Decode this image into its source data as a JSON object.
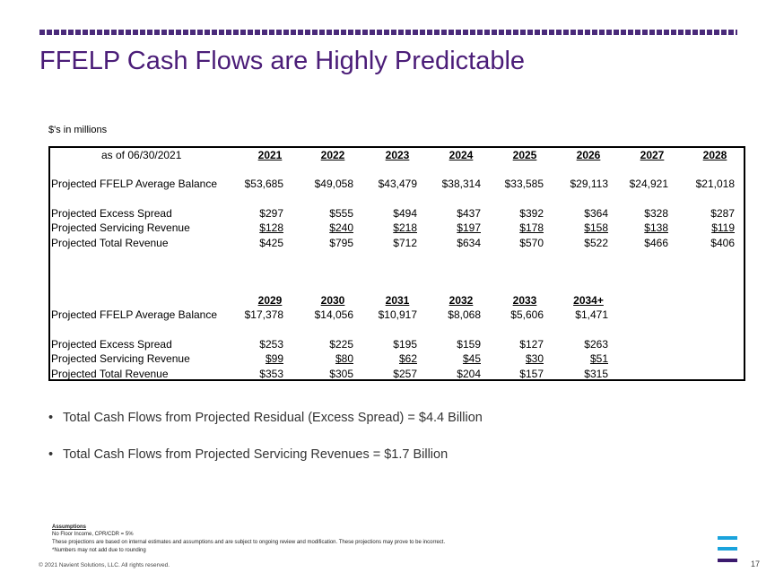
{
  "slide": {
    "title": "FFELP Cash Flows are Highly Predictable",
    "units_note": "$'s in millions",
    "page_number": "17",
    "copyright": "© 2021 Navient Solutions, LLC. All rights reserved."
  },
  "table": {
    "as_of": "as of  06/30/2021",
    "years_top": [
      "2021",
      "2022",
      "2023",
      "2024",
      "2025",
      "2026",
      "2027",
      "2028"
    ],
    "years_bottom": [
      "2029",
      "2030",
      "2031",
      "2032",
      "2033",
      "2034+"
    ],
    "labels": {
      "balance": "Projected FFELP Average Balance",
      "excess": "Projected Excess Spread",
      "servicing": "Projected Servicing Revenue",
      "total": "Projected Total Revenue"
    },
    "top": {
      "balance": [
        "$53,685",
        "$49,058",
        "$43,479",
        "$38,314",
        "$33,585",
        "$29,113",
        "$24,921",
        "$21,018"
      ],
      "excess": [
        "$297",
        "$555",
        "$494",
        "$437",
        "$392",
        "$364",
        "$328",
        "$287"
      ],
      "servicing": [
        "$128",
        "$240",
        "$218",
        "$197",
        "$178",
        "$158",
        "$138",
        "$119"
      ],
      "total": [
        "$425",
        "$795",
        "$712",
        "$634",
        "$570",
        "$522",
        "$466",
        "$406"
      ]
    },
    "bottom": {
      "balance": [
        "$17,378",
        "$14,056",
        "$10,917",
        "$8,068",
        "$5,606",
        "$1,471"
      ],
      "excess": [
        "$253",
        "$225",
        "$195",
        "$159",
        "$127",
        "$263"
      ],
      "servicing": [
        "$99",
        "$80",
        "$62",
        "$45",
        "$30",
        "$51"
      ],
      "total": [
        "$353",
        "$305",
        "$257",
        "$204",
        "$157",
        "$315"
      ]
    }
  },
  "bullets": [
    "Total Cash Flows from Projected Residual (Excess Spread) = $4.4 Billion",
    "Total Cash Flows from Projected Servicing Revenues = $1.7 Billion"
  ],
  "footnotes": {
    "heading": "Assumptions",
    "lines": [
      "No Floor Income,  CPR/CDR = 5%",
      "These projections are based on internal estimates and assumptions and are subject to ongoing review and modification.  These projections may prove to be incorrect.",
      "*Numbers may not add due to rounding"
    ]
  },
  "colors": {
    "title": "#4b1d78",
    "rule": "#4a2a7a",
    "logo_light": "#1aa3dc",
    "logo_dark": "#3b1a6e"
  }
}
